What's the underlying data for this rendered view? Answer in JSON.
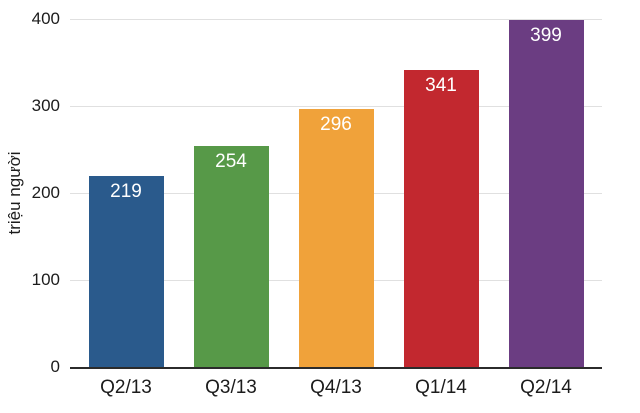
{
  "chart_data": {
    "type": "bar",
    "title": "",
    "xlabel": "",
    "ylabel": "triệu người",
    "categories": [
      "Q2/13",
      "Q3/13",
      "Q4/13",
      "Q1/14",
      "Q2/14"
    ],
    "values": [
      219,
      254,
      296,
      341,
      399
    ],
    "value_labels": [
      "219",
      "254",
      "296",
      "341",
      "399"
    ],
    "bar_colors": [
      "#2A5A8C",
      "#579948",
      "#F0A23A",
      "#C2282F",
      "#6B3D82"
    ],
    "ylim": [
      0,
      400
    ],
    "yticks": [
      0,
      100,
      200,
      300,
      400
    ],
    "ytick_labels": [
      "0",
      "100",
      "200",
      "300",
      "400"
    ],
    "grid": "horizontal-gridlines-on",
    "legend": "none",
    "value_label_position": "inside-top",
    "value_label_color": "#ffffff",
    "axis_line_color": "#2b2b2b",
    "gridline_color": "#e0e0e0",
    "text_color": "#1c1c1c",
    "background_color": "#ffffff"
  }
}
